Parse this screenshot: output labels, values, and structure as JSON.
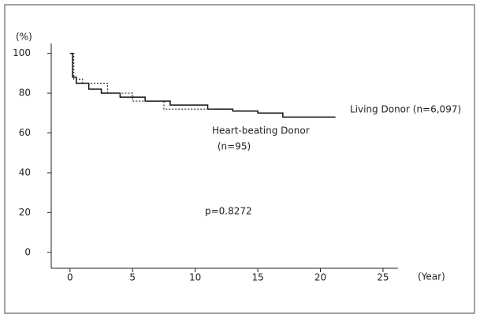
{
  "chart_data": {
    "type": "step",
    "x_label": "(Year)",
    "y_label": "(%)",
    "xlim": [
      -1.5,
      26.2
    ],
    "ylim": [
      -8,
      105
    ],
    "xticks": [
      0,
      5,
      10,
      15,
      20,
      25
    ],
    "yticks": [
      0,
      20,
      40,
      60,
      80,
      100
    ],
    "series": [
      {
        "name": "Living Donor (n=6,097)",
        "color": "#111111",
        "dash": false,
        "x": [
          0,
          0.2,
          0.5,
          1.5,
          2.5,
          4,
          6,
          8,
          11,
          13,
          15,
          17,
          21.2
        ],
        "values": [
          100,
          88,
          85,
          82,
          80,
          78,
          76,
          74,
          72,
          71,
          70,
          68,
          68
        ]
      },
      {
        "name": "Heart-beating Donor",
        "color": "#333333",
        "dash": true,
        "x": [
          0,
          0.3,
          1,
          3,
          5,
          7.5,
          11.5
        ],
        "values": [
          100,
          87,
          85,
          80,
          76,
          72,
          72
        ]
      }
    ],
    "annotations": [
      "(n=95)",
      "p=0.8272"
    ]
  }
}
